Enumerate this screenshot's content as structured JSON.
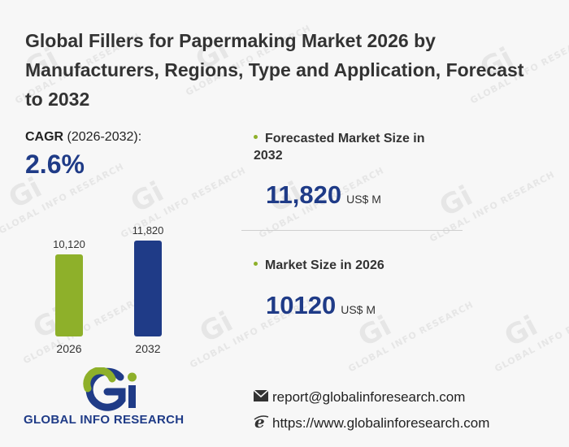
{
  "title": "Global Fillers for Papermaking Market 2026 by Manufacturers, Regions, Type and Application, Forecast to 2032",
  "cagr": {
    "label_bold": "CAGR",
    "label_rest": " (2026-2032):",
    "value": "2.6%"
  },
  "forecast": {
    "label": "Forecasted Market Size in 2032",
    "value": "11,820",
    "unit": "US$ M"
  },
  "current": {
    "label": "Market Size in 2026",
    "value": "10120",
    "unit": "US$ M"
  },
  "chart_data": {
    "type": "bar",
    "categories": [
      "2026",
      "2032"
    ],
    "values": [
      10120,
      11820
    ],
    "value_labels": [
      "10,120",
      "11,820"
    ],
    "colors": [
      "#8eb02a",
      "#1f3b87"
    ],
    "ylim": [
      0,
      11820
    ],
    "grid": false
  },
  "brand": {
    "name": "GLOBAL INFO RESEARCH",
    "watermark": "GLOBAL INFO RESEARCH",
    "logo_letters": "Gi"
  },
  "contact": {
    "email": "report@globalinforesearch.com",
    "website": "https://www.globalinforesearch.com"
  },
  "icons": {
    "email": "envelope-icon",
    "website": "ie-browser-icon"
  }
}
